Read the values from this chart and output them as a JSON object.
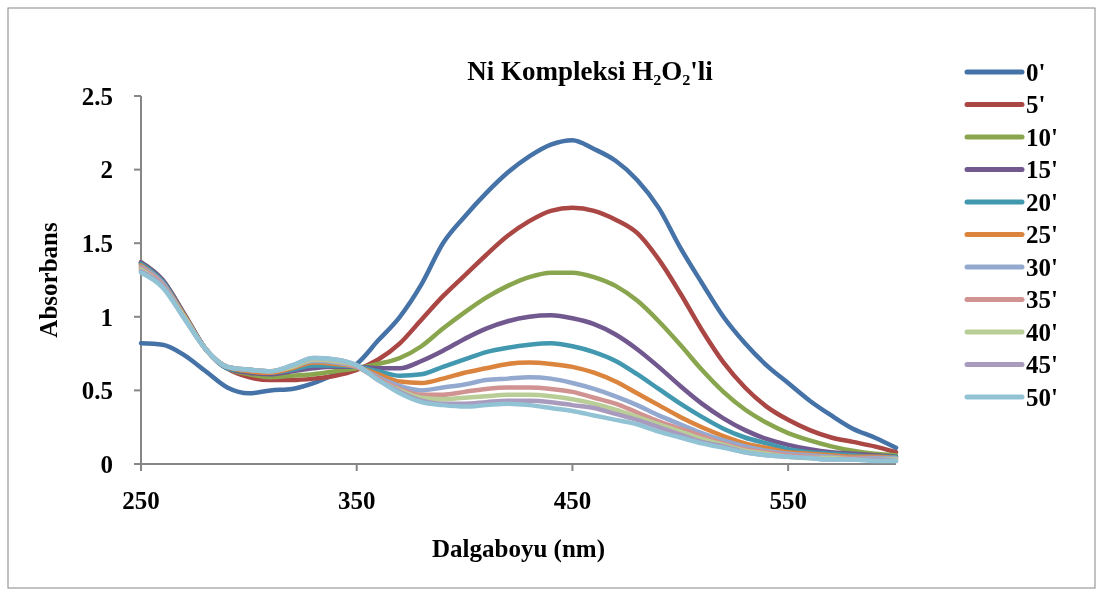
{
  "chart_data": {
    "type": "line",
    "title": "Ni Kompleksi H₂O₂'li",
    "xlabel": "Dalgaboyu (nm)",
    "ylabel": "Absorbans",
    "x": [
      250,
      260,
      270,
      280,
      290,
      300,
      310,
      320,
      330,
      340,
      350,
      360,
      370,
      380,
      390,
      400,
      410,
      420,
      430,
      440,
      450,
      460,
      470,
      480,
      490,
      500,
      510,
      520,
      530,
      540,
      550,
      560,
      570,
      580,
      590,
      600
    ],
    "xlim": [
      250,
      600
    ],
    "xticks": [
      250,
      350,
      450,
      550
    ],
    "ylim": [
      0,
      2.5
    ],
    "yticks": [
      0,
      0.5,
      1,
      1.5,
      2,
      2.5
    ],
    "grid": false,
    "legend": "right",
    "marker": "none",
    "line_style": "solid",
    "series": [
      {
        "name": "0'",
        "color": "#4572a7",
        "values": [
          0.82,
          0.81,
          0.74,
          0.63,
          0.52,
          0.48,
          0.5,
          0.51,
          0.55,
          0.61,
          0.68,
          0.84,
          1.0,
          1.22,
          1.5,
          1.68,
          1.84,
          1.98,
          2.09,
          2.17,
          2.2,
          2.14,
          2.06,
          1.93,
          1.74,
          1.47,
          1.23,
          1.0,
          0.82,
          0.67,
          0.55,
          0.43,
          0.33,
          0.24,
          0.18,
          0.11
        ]
      },
      {
        "name": "5'",
        "color": "#aa4643",
        "values": [
          1.37,
          1.25,
          1.02,
          0.78,
          0.65,
          0.59,
          0.57,
          0.57,
          0.58,
          0.6,
          0.64,
          0.71,
          0.82,
          0.98,
          1.14,
          1.28,
          1.42,
          1.55,
          1.65,
          1.72,
          1.74,
          1.72,
          1.66,
          1.57,
          1.39,
          1.16,
          0.91,
          0.69,
          0.52,
          0.39,
          0.3,
          0.23,
          0.18,
          0.15,
          0.12,
          0.08
        ]
      },
      {
        "name": "10'",
        "color": "#89a54e",
        "values": [
          1.37,
          1.25,
          1.02,
          0.78,
          0.65,
          0.61,
          0.59,
          0.6,
          0.61,
          0.63,
          0.65,
          0.68,
          0.72,
          0.8,
          0.92,
          1.03,
          1.13,
          1.21,
          1.27,
          1.3,
          1.3,
          1.27,
          1.21,
          1.11,
          0.97,
          0.81,
          0.64,
          0.49,
          0.37,
          0.28,
          0.21,
          0.16,
          0.12,
          0.09,
          0.07,
          0.06
        ]
      },
      {
        "name": "15'",
        "color": "#71588f",
        "values": [
          1.37,
          1.25,
          1.02,
          0.78,
          0.65,
          0.62,
          0.61,
          0.63,
          0.65,
          0.66,
          0.66,
          0.65,
          0.65,
          0.7,
          0.77,
          0.85,
          0.92,
          0.97,
          1.0,
          1.01,
          0.99,
          0.95,
          0.88,
          0.78,
          0.66,
          0.53,
          0.41,
          0.31,
          0.23,
          0.17,
          0.13,
          0.1,
          0.08,
          0.07,
          0.06,
          0.05
        ]
      },
      {
        "name": "20'",
        "color": "#4198af",
        "values": [
          1.36,
          1.24,
          1.01,
          0.78,
          0.65,
          0.63,
          0.62,
          0.64,
          0.67,
          0.67,
          0.66,
          0.63,
          0.6,
          0.61,
          0.66,
          0.71,
          0.76,
          0.79,
          0.81,
          0.82,
          0.8,
          0.76,
          0.7,
          0.61,
          0.51,
          0.41,
          0.32,
          0.24,
          0.18,
          0.14,
          0.1,
          0.08,
          0.07,
          0.06,
          0.05,
          0.05
        ]
      },
      {
        "name": "25'",
        "color": "#db843d",
        "values": [
          1.35,
          1.23,
          1.01,
          0.78,
          0.66,
          0.63,
          0.62,
          0.65,
          0.69,
          0.68,
          0.66,
          0.61,
          0.56,
          0.55,
          0.58,
          0.62,
          0.65,
          0.68,
          0.69,
          0.68,
          0.66,
          0.62,
          0.56,
          0.48,
          0.4,
          0.32,
          0.25,
          0.19,
          0.14,
          0.11,
          0.08,
          0.07,
          0.06,
          0.05,
          0.05,
          0.04
        ]
      },
      {
        "name": "30'",
        "color": "#93a9cf",
        "values": [
          1.34,
          1.23,
          1.0,
          0.78,
          0.66,
          0.64,
          0.63,
          0.66,
          0.7,
          0.69,
          0.66,
          0.59,
          0.53,
          0.5,
          0.52,
          0.54,
          0.57,
          0.58,
          0.59,
          0.58,
          0.55,
          0.51,
          0.46,
          0.4,
          0.33,
          0.27,
          0.21,
          0.16,
          0.12,
          0.09,
          0.07,
          0.06,
          0.05,
          0.04,
          0.04,
          0.04
        ]
      },
      {
        "name": "35'",
        "color": "#d19392",
        "values": [
          1.33,
          1.22,
          1.0,
          0.78,
          0.66,
          0.64,
          0.63,
          0.66,
          0.71,
          0.7,
          0.66,
          0.58,
          0.51,
          0.47,
          0.47,
          0.49,
          0.51,
          0.52,
          0.52,
          0.51,
          0.49,
          0.45,
          0.41,
          0.35,
          0.29,
          0.24,
          0.19,
          0.14,
          0.1,
          0.08,
          0.06,
          0.05,
          0.04,
          0.04,
          0.03,
          0.03
        ]
      },
      {
        "name": "40'",
        "color": "#b9cd96",
        "values": [
          1.32,
          1.21,
          1.0,
          0.78,
          0.66,
          0.64,
          0.63,
          0.66,
          0.71,
          0.7,
          0.67,
          0.57,
          0.5,
          0.45,
          0.44,
          0.45,
          0.46,
          0.47,
          0.47,
          0.46,
          0.44,
          0.41,
          0.37,
          0.32,
          0.27,
          0.22,
          0.17,
          0.13,
          0.09,
          0.07,
          0.05,
          0.04,
          0.04,
          0.03,
          0.03,
          0.03
        ]
      },
      {
        "name": "45'",
        "color": "#a99bbd",
        "values": [
          1.31,
          1.21,
          0.99,
          0.78,
          0.66,
          0.64,
          0.63,
          0.67,
          0.72,
          0.71,
          0.67,
          0.57,
          0.49,
          0.43,
          0.41,
          0.41,
          0.42,
          0.43,
          0.43,
          0.42,
          0.4,
          0.38,
          0.34,
          0.3,
          0.25,
          0.2,
          0.15,
          0.12,
          0.08,
          0.06,
          0.05,
          0.04,
          0.03,
          0.03,
          0.03,
          0.02
        ]
      },
      {
        "name": "50'",
        "color": "#91c3d5",
        "values": [
          1.3,
          1.2,
          0.99,
          0.78,
          0.66,
          0.64,
          0.63,
          0.67,
          0.72,
          0.71,
          0.67,
          0.57,
          0.48,
          0.42,
          0.4,
          0.39,
          0.4,
          0.41,
          0.4,
          0.38,
          0.36,
          0.33,
          0.3,
          0.27,
          0.22,
          0.18,
          0.14,
          0.11,
          0.08,
          0.06,
          0.05,
          0.04,
          0.03,
          0.03,
          0.02,
          0.02
        ]
      }
    ]
  }
}
